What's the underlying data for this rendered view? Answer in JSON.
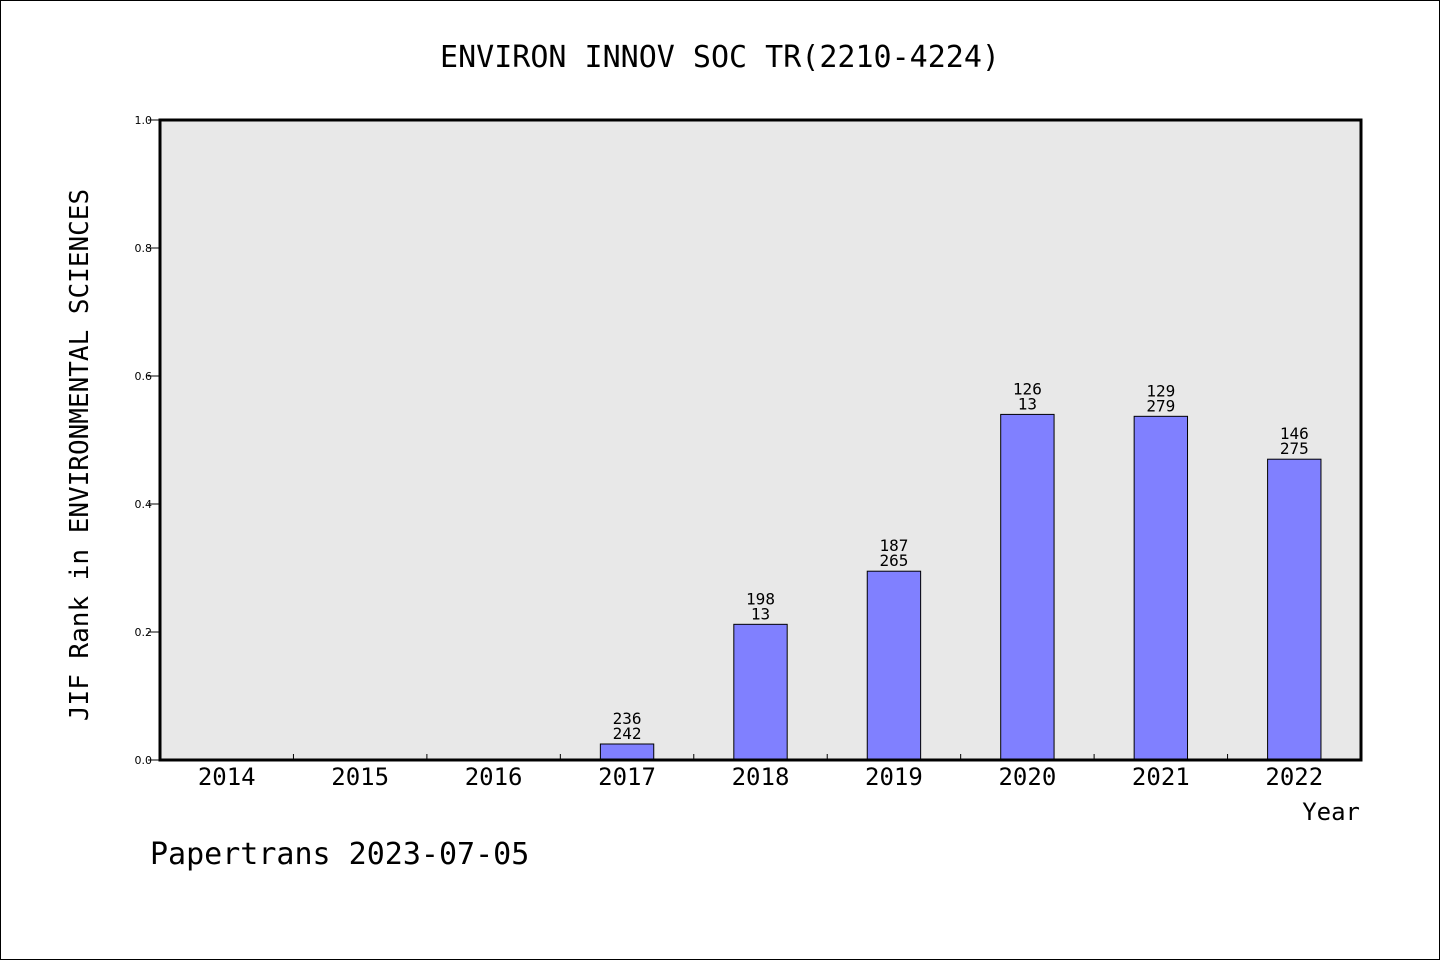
{
  "chart_data": {
    "type": "bar",
    "title": "ENVIRON INNOV SOC TR(2210-4224)",
    "xlabel": "Year",
    "ylabel": "JIF Rank in ENVIRONMENTAL SCIENCES",
    "ylim": [
      0,
      1.0
    ],
    "yticks": [
      "0.0",
      "0.2",
      "0.4",
      "0.6",
      "0.8",
      "1.0"
    ],
    "categories": [
      "2014",
      "2015",
      "2016",
      "2017",
      "2018",
      "2019",
      "2020",
      "2021",
      "2022"
    ],
    "values": [
      null,
      null,
      null,
      0.025,
      0.212,
      0.295,
      0.54,
      0.537,
      0.47
    ],
    "labels_top": [
      null,
      null,
      null,
      "236",
      "198",
      "187",
      "126",
      "129",
      "146"
    ],
    "labels_bottom": [
      null,
      null,
      null,
      "242",
      "13",
      "265",
      "13",
      "279",
      "275"
    ],
    "bar_color": "#8080ff",
    "plot_background": "#e8e8e8",
    "grid": false
  },
  "footer": {
    "text": "Papertrans 2023-07-05"
  }
}
